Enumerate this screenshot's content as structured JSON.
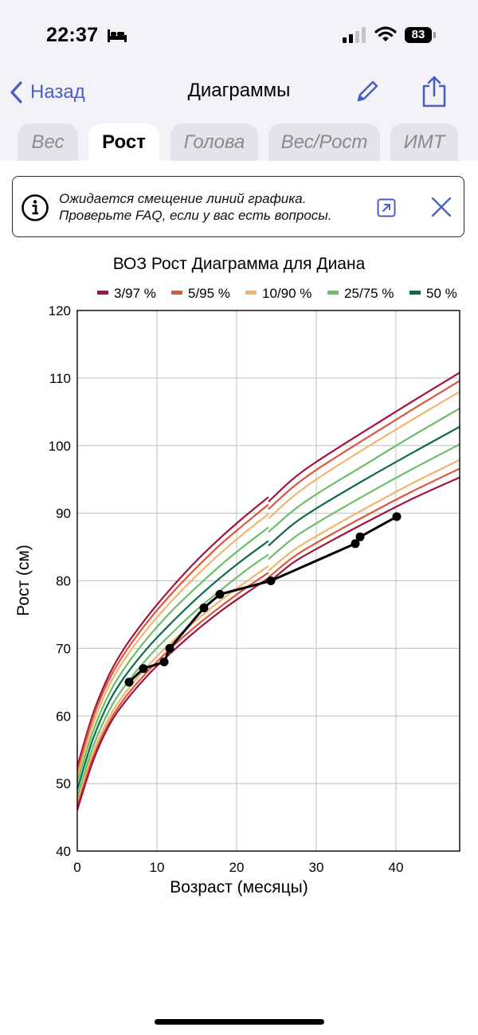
{
  "status_bar": {
    "time": "22:37",
    "battery": "83"
  },
  "nav": {
    "back_label": "Назад",
    "title": "Диаграммы"
  },
  "tabs": [
    {
      "label": "Вес",
      "active": false
    },
    {
      "label": "Рост",
      "active": true
    },
    {
      "label": "Голова",
      "active": false
    },
    {
      "label": "Вес/Рост",
      "active": false
    },
    {
      "label": "ИМТ",
      "active": false
    }
  ],
  "banner": {
    "line1": "Ожидается смещение линий графика.",
    "line2": "Проверьте FAQ, если у вас есть вопросы."
  },
  "chart_data": {
    "type": "line",
    "title": "ВОЗ Рост Диаграмма для Диана",
    "xlabel": "Возраст (месяцы)",
    "ylabel": "Рост (см)",
    "xlim": [
      0,
      48
    ],
    "ylim": [
      40,
      120
    ],
    "xticks": [
      0,
      10,
      20,
      30,
      40
    ],
    "yticks": [
      40,
      50,
      60,
      70,
      80,
      90,
      100,
      110,
      120
    ],
    "grid": true,
    "legend_position": "top",
    "legend": [
      {
        "label": "3/97 %",
        "color": "#a3133d"
      },
      {
        "label": "5/95 %",
        "color": "#d9573e"
      },
      {
        "label": "10/90 %",
        "color": "#f0b56e"
      },
      {
        "label": "25/75 %",
        "color": "#6cbe6a"
      },
      {
        "label": "50 %",
        "color": "#0e6c47"
      }
    ],
    "percentile_x": [
      0,
      2,
      4,
      6,
      9,
      12,
      15,
      18,
      21,
      24,
      27,
      30,
      36,
      42,
      48
    ],
    "percentile_curves": [
      {
        "pct": 97,
        "color": "#a3133d",
        "y": [
          52.5,
          60.4,
          66.1,
          70.2,
          75.0,
          79.2,
          83.0,
          86.4,
          89.5,
          92.4,
          95.0,
          97.6,
          102.1,
          106.5,
          110.8
        ]
      },
      {
        "pct": 95,
        "color": "#d9573e",
        "y": [
          51.8,
          59.8,
          65.4,
          69.4,
          74.2,
          78.3,
          82.0,
          85.4,
          88.4,
          91.3,
          93.8,
          96.4,
          100.9,
          105.3,
          109.6
        ]
      },
      {
        "pct": 90,
        "color": "#f0b56e",
        "y": [
          51.0,
          58.9,
          64.5,
          68.5,
          73.2,
          77.2,
          80.8,
          84.1,
          87.1,
          89.9,
          92.4,
          95.0,
          99.5,
          103.8,
          108.0
        ]
      },
      {
        "pct": 75,
        "color": "#6cbe6a",
        "y": [
          50.2,
          57.8,
          63.3,
          67.2,
          71.8,
          75.7,
          79.1,
          82.3,
          85.2,
          87.9,
          90.3,
          92.8,
          97.1,
          101.4,
          105.5
        ]
      },
      {
        "pct": 50,
        "color": "#0e6c47",
        "y": [
          49.1,
          56.7,
          62.1,
          65.9,
          70.3,
          74.0,
          77.4,
          80.5,
          83.3,
          85.9,
          88.3,
          90.7,
          94.9,
          98.9,
          102.8
        ]
      },
      {
        "pct": 25,
        "color": "#6cbe6a",
        "y": [
          48.0,
          55.5,
          60.8,
          64.5,
          68.8,
          72.4,
          75.7,
          78.6,
          81.4,
          83.9,
          86.2,
          88.5,
          92.6,
          96.5,
          100.2
        ]
      },
      {
        "pct": 10,
        "color": "#f0b56e",
        "y": [
          47.2,
          54.6,
          59.8,
          63.4,
          67.6,
          71.1,
          74.2,
          77.1,
          79.7,
          82.2,
          84.4,
          86.6,
          90.6,
          94.4,
          97.9
        ]
      },
      {
        "pct": 5,
        "color": "#d9573e",
        "y": [
          46.6,
          53.9,
          59.1,
          62.7,
          66.8,
          70.3,
          73.4,
          76.2,
          78.8,
          81.2,
          83.4,
          85.6,
          89.5,
          93.2,
          96.6
        ]
      },
      {
        "pct": 3,
        "color": "#a3133d",
        "y": [
          46.1,
          53.4,
          58.6,
          62.1,
          66.2,
          69.6,
          72.7,
          75.5,
          78.0,
          80.4,
          82.6,
          84.7,
          88.5,
          92.1,
          95.3
        ]
      }
    ],
    "series": [
      {
        "color": "#000000",
        "x": [
          6.5,
          8.3,
          10.9,
          11.6,
          15.9,
          17.9,
          24.3,
          34.9,
          35.5,
          40.1
        ],
        "y": [
          65.0,
          67.0,
          68.0,
          70.0,
          76.0,
          78.0,
          80.0,
          85.5,
          86.5,
          89.5
        ]
      }
    ]
  }
}
